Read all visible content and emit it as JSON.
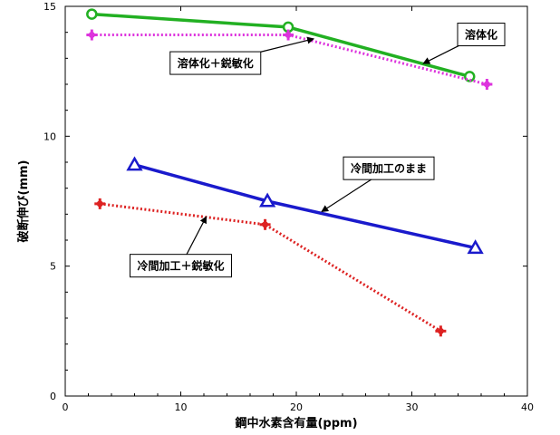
{
  "chart_data": {
    "type": "line",
    "xlabel": "鋼中水素含有量(ppm)",
    "ylabel": "破断伸び(mm)",
    "xlim": [
      0,
      40
    ],
    "ylim": [
      0,
      15
    ],
    "x_ticks": [
      0,
      10,
      20,
      30,
      40
    ],
    "y_ticks": [
      0,
      5,
      10,
      15
    ],
    "grid": false,
    "series": [
      {
        "name": "溶体化",
        "color": "#22b022",
        "line": "solid",
        "marker": "circle",
        "points": [
          [
            2.3,
            14.7
          ],
          [
            19.3,
            14.2
          ],
          [
            35.0,
            12.3
          ]
        ]
      },
      {
        "name": "溶体化＋鋭敏化",
        "color": "#dd33dd",
        "line": "dotted",
        "marker": "cross",
        "points": [
          [
            2.3,
            13.9
          ],
          [
            19.3,
            13.9
          ],
          [
            36.5,
            12.0
          ]
        ]
      },
      {
        "name": "冷間加工のまま",
        "color": "#1a1acc",
        "line": "solid",
        "marker": "triangle",
        "points": [
          [
            6.0,
            8.9
          ],
          [
            17.5,
            7.5
          ],
          [
            35.5,
            5.7
          ]
        ]
      },
      {
        "name": "冷間加工＋鋭敏化",
        "color": "#dd2222",
        "line": "dotted",
        "marker": "cross",
        "points": [
          [
            3.0,
            7.4
          ],
          [
            17.3,
            6.6
          ],
          [
            32.5,
            2.5
          ]
        ]
      }
    ],
    "annotations": [
      {
        "text": "溶体化",
        "series": 0,
        "label_x": 36.0,
        "label_y": 13.9,
        "arrow_x": 31.0,
        "arrow_y": 12.8
      },
      {
        "text": "溶体化＋鋭敏化",
        "series": 1,
        "label_x": 13.0,
        "label_y": 12.8,
        "arrow_x": 21.5,
        "arrow_y": 13.75
      },
      {
        "text": "冷間加工のまま",
        "series": 2,
        "label_x": 28.0,
        "label_y": 8.75,
        "arrow_x": 22.2,
        "arrow_y": 7.1
      },
      {
        "text": "冷間加工＋鋭敏化",
        "series": 3,
        "label_x": 10.0,
        "label_y": 5.0,
        "arrow_x": 12.2,
        "arrow_y": 6.9
      }
    ]
  }
}
